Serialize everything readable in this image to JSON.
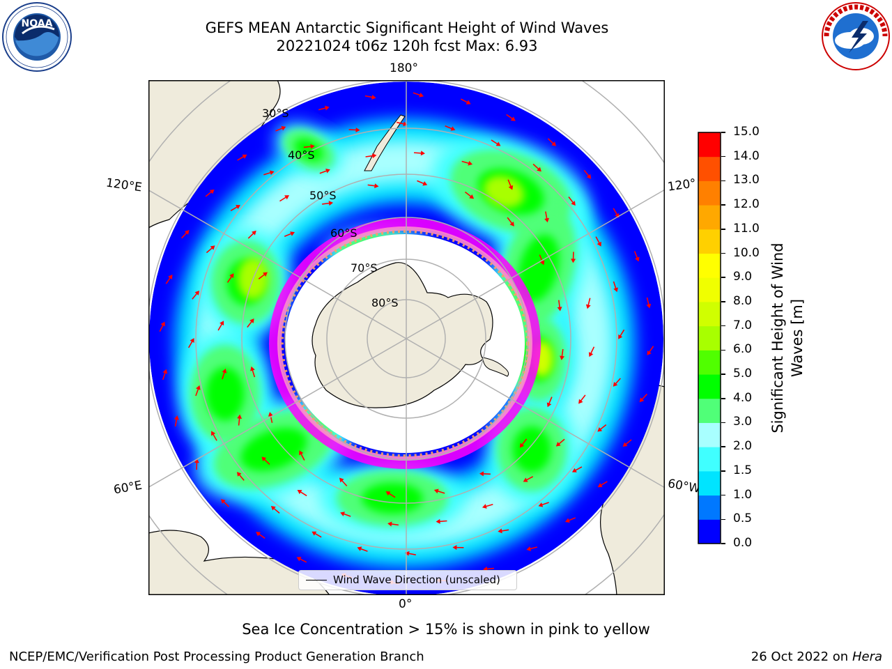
{
  "title": {
    "line1": "GEFS MEAN Antarctic Significant Height of Wind Waves",
    "line2": "20221024 t06z 120h fcst   Max: 6.93"
  },
  "map": {
    "projection": "south-polar-stereographic",
    "longitude_labels": {
      "top": "180°",
      "bottom": "0°",
      "left_upper": "120°E",
      "left_lower": "60°E",
      "right_upper": "120°",
      "right_lower": "60°W"
    },
    "latitude_labels": [
      "30°S",
      "40°S",
      "50°S",
      "60°S",
      "70°S",
      "80°S"
    ],
    "legend_text": "Wind Wave Direction (unscaled)",
    "land_color": "#efebdc",
    "coast_color": "#000000",
    "grid_color": "#b0b0b0",
    "ice_colors": [
      "#ff00ff",
      "#ff66cc",
      "#ffa060",
      "#ffe080"
    ],
    "arrow_color": "#ff0000"
  },
  "colorbar": {
    "label_line1": "Significant Height of Wind",
    "label_line2": "Waves [m]",
    "levels": [
      "0.0",
      "0.5",
      "1.0",
      "1.5",
      "2.0",
      "3.0",
      "4.0",
      "5.0",
      "6.0",
      "7.0",
      "8.0",
      "9.0",
      "10.0",
      "11.0",
      "12.0",
      "13.0",
      "14.0",
      "15.0"
    ],
    "colors": [
      "#0000ff",
      "#0078ff",
      "#00e4ff",
      "#40ffff",
      "#a8ffff",
      "#50ff78",
      "#00ff00",
      "#50ff00",
      "#a8ff00",
      "#d0ff00",
      "#f0ff00",
      "#ffff00",
      "#ffd000",
      "#ffa800",
      "#ff8000",
      "#ff5000",
      "#ff0000"
    ]
  },
  "note": "Sea Ice Concentration > 15% is shown in pink to yellow",
  "footer": {
    "left": "NCEP/EMC/Verification Post Processing Product Generation Branch",
    "right_prefix": "26 Oct 2022 on ",
    "right_machine": "Hera"
  },
  "logos": {
    "left": "NOAA",
    "right": "NATIONAL WEATHER SERVICE"
  }
}
